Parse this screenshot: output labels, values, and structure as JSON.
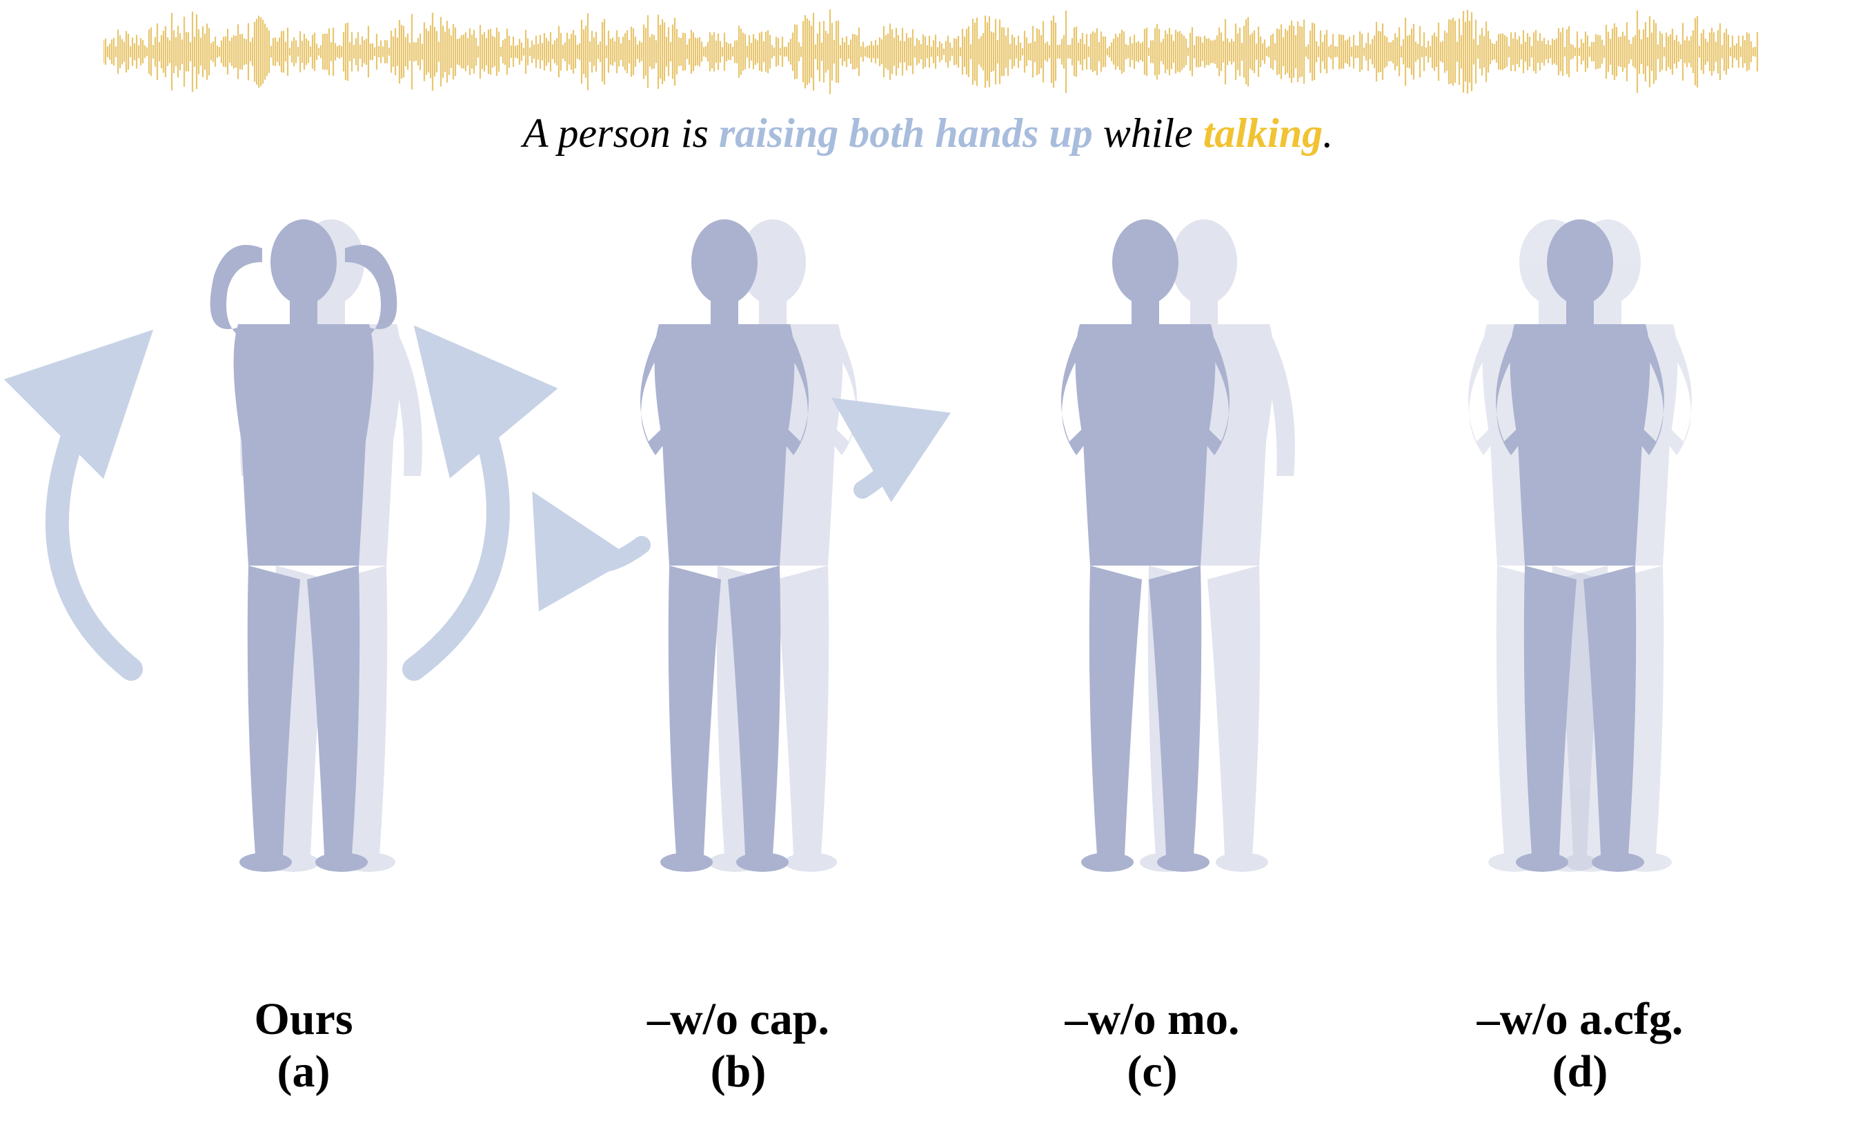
{
  "caption": {
    "prefix": "A person is ",
    "action": "raising both hands up",
    "middle": " while ",
    "speech": "talking",
    "suffix": ".",
    "action_color": "#a8bcdc",
    "speech_color": "#f1c232"
  },
  "waveform": {
    "color": "#e8c66f",
    "description_icon": "audio-waveform"
  },
  "body_color": "#aab2cf",
  "panels": [
    {
      "name": "Ours",
      "letter": "(a)"
    },
    {
      "name": "–w/o cap.",
      "letter": "(b)"
    },
    {
      "name": "–w/o mo.",
      "letter": "(c)"
    },
    {
      "name": "–w/o a.cfg.",
      "letter": "(d)"
    }
  ]
}
